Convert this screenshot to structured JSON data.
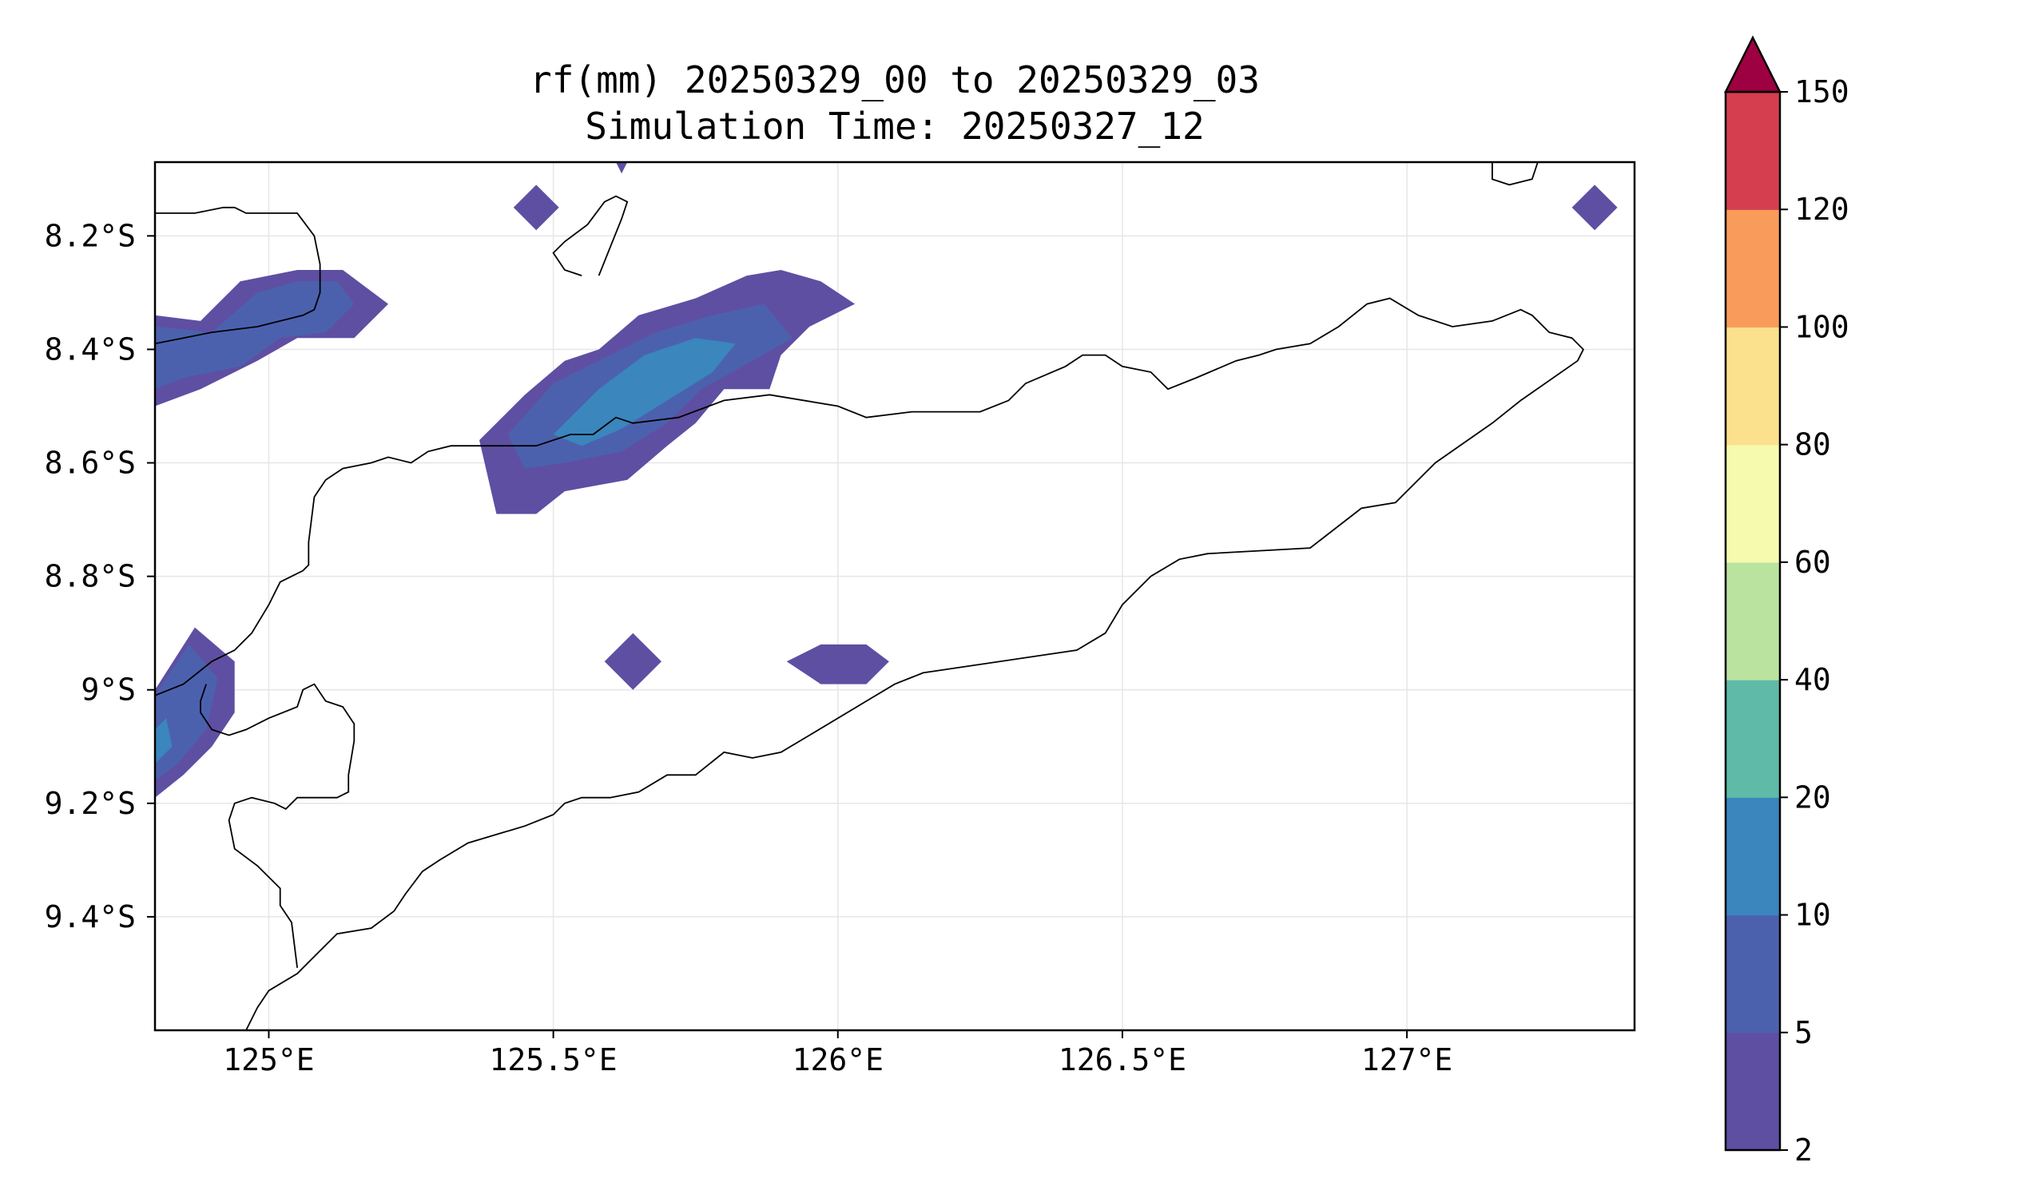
{
  "title": {
    "line1": "rf(mm) 20250329_00 to 20250329_03",
    "line2": "Simulation Time: 20250327_12"
  },
  "map": {
    "lon_range": [
      124.8,
      127.4
    ],
    "lat_range": [
      -9.6,
      -8.07
    ],
    "lon_ticks": [
      {
        "value": 125.0,
        "label": "125°E"
      },
      {
        "value": 125.5,
        "label": "125.5°E"
      },
      {
        "value": 126.0,
        "label": "126°E"
      },
      {
        "value": 126.5,
        "label": "126.5°E"
      },
      {
        "value": 127.0,
        "label": "127°E"
      }
    ],
    "lat_ticks": [
      {
        "value": -8.2,
        "label": "8.2°S"
      },
      {
        "value": -8.4,
        "label": "8.4°S"
      },
      {
        "value": -8.6,
        "label": "8.6°S"
      },
      {
        "value": -8.8,
        "label": "8.8°S"
      },
      {
        "value": -9.0,
        "label": "9°S"
      },
      {
        "value": -9.2,
        "label": "9.2°S"
      },
      {
        "value": -9.4,
        "label": "9.4°S"
      }
    ],
    "gridlines": true,
    "frame_color": "#000000",
    "grid_color": "#e6e6e6",
    "coastline_color": "#000000"
  },
  "colorbar": {
    "placement": "right",
    "extend": "max",
    "extend_color": "#9e0142",
    "levels": [
      {
        "value": 2,
        "label": "2"
      },
      {
        "value": 5,
        "label": "5"
      },
      {
        "value": 10,
        "label": "10"
      },
      {
        "value": 20,
        "label": "20"
      },
      {
        "value": 40,
        "label": "40"
      },
      {
        "value": 60,
        "label": "60"
      },
      {
        "value": 80,
        "label": "80"
      },
      {
        "value": 100,
        "label": "100"
      },
      {
        "value": 120,
        "label": "120"
      },
      {
        "value": 150,
        "label": "150"
      }
    ],
    "colors": [
      "#5e4fa2",
      "#4c61ae",
      "#3a86bd",
      "#5fbaa8",
      "#bae3a0",
      "#f5faae",
      "#fbe08d",
      "#f99c5b",
      "#d53e4f"
    ]
  },
  "chart_data": {
    "type": "heatmap",
    "variable": "rf(mm)",
    "xlim": [
      124.8,
      127.4
    ],
    "ylim": [
      -9.6,
      -8.07
    ],
    "precip_regions": [
      {
        "level": "2-5",
        "color": "#5e4fa2",
        "polygon": [
          [
            124.8,
            -8.34
          ],
          [
            124.88,
            -8.35
          ],
          [
            124.95,
            -8.28
          ],
          [
            125.05,
            -8.26
          ],
          [
            125.13,
            -8.26
          ],
          [
            125.21,
            -8.32
          ],
          [
            125.15,
            -8.38
          ],
          [
            125.05,
            -8.38
          ],
          [
            124.98,
            -8.42
          ],
          [
            124.88,
            -8.47
          ],
          [
            124.8,
            -8.5
          ]
        ]
      },
      {
        "level": "5-10",
        "color": "#4c61ae",
        "polygon": [
          [
            124.8,
            -8.36
          ],
          [
            124.9,
            -8.37
          ],
          [
            124.98,
            -8.3
          ],
          [
            125.05,
            -8.28
          ],
          [
            125.12,
            -8.28
          ],
          [
            125.15,
            -8.32
          ],
          [
            125.1,
            -8.37
          ],
          [
            125.02,
            -8.38
          ],
          [
            124.95,
            -8.43
          ],
          [
            124.85,
            -8.45
          ],
          [
            124.8,
            -8.47
          ]
        ]
      },
      {
        "level": "2-5",
        "color": "#5e4fa2",
        "polygon": [
          [
            125.37,
            -8.56
          ],
          [
            125.45,
            -8.48
          ],
          [
            125.52,
            -8.42
          ],
          [
            125.58,
            -8.4
          ],
          [
            125.65,
            -8.34
          ],
          [
            125.75,
            -8.31
          ],
          [
            125.84,
            -8.27
          ],
          [
            125.9,
            -8.26
          ],
          [
            125.97,
            -8.28
          ],
          [
            126.03,
            -8.32
          ],
          [
            125.95,
            -8.36
          ],
          [
            125.9,
            -8.41
          ],
          [
            125.88,
            -8.47
          ],
          [
            125.8,
            -8.47
          ],
          [
            125.75,
            -8.53
          ],
          [
            125.7,
            -8.57
          ],
          [
            125.63,
            -8.63
          ],
          [
            125.52,
            -8.65
          ],
          [
            125.47,
            -8.69
          ],
          [
            125.4,
            -8.69
          ]
        ]
      },
      {
        "level": "5-10",
        "color": "#4c61ae",
        "polygon": [
          [
            125.42,
            -8.55
          ],
          [
            125.5,
            -8.46
          ],
          [
            125.6,
            -8.41
          ],
          [
            125.68,
            -8.37
          ],
          [
            125.78,
            -8.34
          ],
          [
            125.87,
            -8.32
          ],
          [
            125.92,
            -8.38
          ],
          [
            125.85,
            -8.42
          ],
          [
            125.76,
            -8.47
          ],
          [
            125.7,
            -8.53
          ],
          [
            125.62,
            -8.58
          ],
          [
            125.52,
            -8.6
          ],
          [
            125.45,
            -8.61
          ]
        ]
      },
      {
        "level": "10-20",
        "color": "#3a86bd",
        "polygon": [
          [
            125.5,
            -8.55
          ],
          [
            125.58,
            -8.47
          ],
          [
            125.66,
            -8.41
          ],
          [
            125.75,
            -8.38
          ],
          [
            125.82,
            -8.39
          ],
          [
            125.78,
            -8.44
          ],
          [
            125.7,
            -8.49
          ],
          [
            125.62,
            -8.54
          ],
          [
            125.55,
            -8.57
          ]
        ]
      },
      {
        "level": "2-5",
        "color": "#5e4fa2",
        "polygon": [
          [
            124.8,
            -9.0
          ],
          [
            124.87,
            -8.89
          ],
          [
            124.94,
            -8.95
          ],
          [
            124.94,
            -9.04
          ],
          [
            124.9,
            -9.1
          ],
          [
            124.85,
            -9.15
          ],
          [
            124.8,
            -9.19
          ]
        ]
      },
      {
        "level": "5-10",
        "color": "#4c61ae",
        "polygon": [
          [
            124.8,
            -9.01
          ],
          [
            124.86,
            -8.92
          ],
          [
            124.91,
            -8.98
          ],
          [
            124.89,
            -9.07
          ],
          [
            124.84,
            -9.13
          ],
          [
            124.8,
            -9.16
          ]
        ]
      },
      {
        "level": "10-20",
        "color": "#3a86bd",
        "polygon": [
          [
            124.8,
            -9.07
          ],
          [
            124.82,
            -9.05
          ],
          [
            124.83,
            -9.1
          ],
          [
            124.8,
            -9.13
          ]
        ]
      },
      {
        "level": "2-5",
        "color": "#5e4fa2",
        "polygon": [
          [
            125.59,
            -8.95
          ],
          [
            125.64,
            -8.9
          ],
          [
            125.69,
            -8.95
          ],
          [
            125.64,
            -9.0
          ]
        ]
      },
      {
        "level": "2-5",
        "color": "#5e4fa2",
        "polygon": [
          [
            125.91,
            -8.95
          ],
          [
            125.97,
            -8.92
          ],
          [
            126.05,
            -8.92
          ],
          [
            126.09,
            -8.95
          ],
          [
            126.05,
            -8.99
          ],
          [
            125.97,
            -8.99
          ]
        ]
      },
      {
        "level": "2-5",
        "color": "#5e4fa2",
        "polygon": [
          [
            125.43,
            -8.15
          ],
          [
            125.47,
            -8.11
          ],
          [
            125.51,
            -8.15
          ],
          [
            125.47,
            -8.19
          ]
        ]
      },
      {
        "level": "2-5",
        "color": "#5e4fa2",
        "polygon": [
          [
            127.29,
            -8.15
          ],
          [
            127.33,
            -8.11
          ],
          [
            127.37,
            -8.15
          ],
          [
            127.33,
            -8.19
          ]
        ]
      },
      {
        "level": "2-5",
        "color": "#5e4fa2",
        "polygon": [
          [
            125.61,
            -8.07
          ],
          [
            125.63,
            -8.07
          ],
          [
            125.62,
            -8.09
          ]
        ]
      }
    ],
    "coastlines": [
      [
        [
          124.8,
          -9.01
        ],
        [
          124.85,
          -8.99
        ],
        [
          124.9,
          -8.95
        ],
        [
          124.94,
          -8.93
        ],
        [
          124.97,
          -8.9
        ],
        [
          125.0,
          -8.85
        ],
        [
          125.02,
          -8.81
        ],
        [
          125.06,
          -8.79
        ],
        [
          125.07,
          -8.78
        ],
        [
          125.07,
          -8.74
        ],
        [
          125.08,
          -8.66
        ],
        [
          125.1,
          -8.63
        ],
        [
          125.13,
          -8.61
        ],
        [
          125.18,
          -8.6
        ],
        [
          125.21,
          -8.59
        ],
        [
          125.25,
          -8.6
        ],
        [
          125.28,
          -8.58
        ],
        [
          125.32,
          -8.57
        ],
        [
          125.4,
          -8.57
        ],
        [
          125.47,
          -8.57
        ],
        [
          125.53,
          -8.55
        ],
        [
          125.57,
          -8.55
        ],
        [
          125.61,
          -8.52
        ],
        [
          125.64,
          -8.53
        ],
        [
          125.72,
          -8.52
        ],
        [
          125.8,
          -8.49
        ],
        [
          125.88,
          -8.48
        ],
        [
          126.0,
          -8.5
        ],
        [
          126.05,
          -8.52
        ],
        [
          126.13,
          -8.51
        ],
        [
          126.25,
          -8.51
        ],
        [
          126.3,
          -8.49
        ],
        [
          126.33,
          -8.46
        ],
        [
          126.4,
          -8.43
        ],
        [
          126.43,
          -8.41
        ],
        [
          126.47,
          -8.41
        ],
        [
          126.5,
          -8.43
        ],
        [
          126.55,
          -8.44
        ],
        [
          126.58,
          -8.47
        ],
        [
          126.63,
          -8.45
        ],
        [
          126.7,
          -8.42
        ],
        [
          126.74,
          -8.41
        ],
        [
          126.77,
          -8.4
        ],
        [
          126.83,
          -8.39
        ],
        [
          126.88,
          -8.36
        ],
        [
          126.93,
          -8.32
        ],
        [
          126.97,
          -8.31
        ],
        [
          127.02,
          -8.34
        ],
        [
          127.08,
          -8.36
        ],
        [
          127.15,
          -8.35
        ],
        [
          127.2,
          -8.33
        ],
        [
          127.22,
          -8.34
        ],
        [
          127.25,
          -8.37
        ],
        [
          127.29,
          -8.38
        ],
        [
          127.31,
          -8.4
        ],
        [
          127.3,
          -8.42
        ],
        [
          127.2,
          -8.49
        ],
        [
          127.15,
          -8.53
        ],
        [
          127.05,
          -8.6
        ],
        [
          126.98,
          -8.67
        ],
        [
          126.92,
          -8.68
        ],
        [
          126.83,
          -8.75
        ],
        [
          126.65,
          -8.76
        ],
        [
          126.6,
          -8.77
        ],
        [
          126.55,
          -8.8
        ],
        [
          126.5,
          -8.85
        ],
        [
          126.47,
          -8.9
        ],
        [
          126.42,
          -8.93
        ],
        [
          126.15,
          -8.97
        ],
        [
          126.1,
          -8.99
        ],
        [
          126.05,
          -9.02
        ],
        [
          125.95,
          -9.08
        ],
        [
          125.9,
          -9.11
        ],
        [
          125.85,
          -9.12
        ],
        [
          125.8,
          -9.11
        ],
        [
          125.75,
          -9.15
        ],
        [
          125.7,
          -9.15
        ],
        [
          125.65,
          -9.18
        ],
        [
          125.6,
          -9.19
        ],
        [
          125.55,
          -9.19
        ],
        [
          125.52,
          -9.2
        ],
        [
          125.5,
          -9.22
        ],
        [
          125.45,
          -9.24
        ],
        [
          125.35,
          -9.27
        ],
        [
          125.3,
          -9.3
        ],
        [
          125.27,
          -9.32
        ],
        [
          125.24,
          -9.36
        ],
        [
          125.22,
          -9.39
        ],
        [
          125.18,
          -9.42
        ],
        [
          125.12,
          -9.43
        ],
        [
          125.08,
          -9.47
        ],
        [
          125.05,
          -9.5
        ],
        [
          125.0,
          -9.53
        ],
        [
          124.98,
          -9.56
        ],
        [
          124.96,
          -9.6
        ]
      ],
      [
        [
          125.05,
          -9.49
        ],
        [
          125.04,
          -9.41
        ],
        [
          125.02,
          -9.38
        ],
        [
          125.02,
          -9.35
        ],
        [
          124.98,
          -9.31
        ],
        [
          124.94,
          -9.28
        ],
        [
          124.93,
          -9.23
        ],
        [
          124.94,
          -9.2
        ],
        [
          124.97,
          -9.19
        ],
        [
          125.01,
          -9.2
        ],
        [
          125.03,
          -9.21
        ],
        [
          125.05,
          -9.19
        ],
        [
          125.12,
          -9.19
        ],
        [
          125.14,
          -9.18
        ],
        [
          125.14,
          -9.15
        ],
        [
          125.15,
          -9.09
        ],
        [
          125.15,
          -9.06
        ],
        [
          125.13,
          -9.03
        ],
        [
          125.1,
          -9.02
        ],
        [
          125.08,
          -8.99
        ],
        [
          125.06,
          -9.0
        ],
        [
          125.05,
          -9.03
        ],
        [
          125.0,
          -9.05
        ],
        [
          124.96,
          -9.07
        ],
        [
          124.93,
          -9.08
        ],
        [
          124.9,
          -9.07
        ],
        [
          124.88,
          -9.04
        ],
        [
          124.88,
          -9.02
        ],
        [
          124.89,
          -8.99
        ]
      ],
      [
        [
          124.8,
          -8.16
        ],
        [
          124.87,
          -8.16
        ],
        [
          124.92,
          -8.15
        ],
        [
          124.94,
          -8.15
        ],
        [
          124.96,
          -8.16
        ],
        [
          125.0,
          -8.16
        ],
        [
          125.05,
          -8.16
        ],
        [
          125.08,
          -8.2
        ],
        [
          125.09,
          -8.25
        ],
        [
          125.09,
          -8.28
        ],
        [
          125.09,
          -8.3
        ],
        [
          125.08,
          -8.33
        ],
        [
          125.06,
          -8.34
        ],
        [
          125.02,
          -8.35
        ],
        [
          124.98,
          -8.36
        ],
        [
          124.9,
          -8.37
        ],
        [
          124.85,
          -8.38
        ],
        [
          124.8,
          -8.39
        ]
      ],
      [
        [
          125.58,
          -8.27
        ],
        [
          125.6,
          -8.22
        ],
        [
          125.62,
          -8.17
        ],
        [
          125.63,
          -8.14
        ],
        [
          125.61,
          -8.13
        ],
        [
          125.59,
          -8.14
        ],
        [
          125.56,
          -8.18
        ],
        [
          125.52,
          -8.21
        ],
        [
          125.5,
          -8.23
        ],
        [
          125.52,
          -8.26
        ],
        [
          125.55,
          -8.27
        ]
      ],
      [
        [
          127.15,
          -8.07
        ],
        [
          127.15,
          -8.1
        ],
        [
          127.18,
          -8.11
        ],
        [
          127.22,
          -8.1
        ],
        [
          127.23,
          -8.07
        ]
      ]
    ]
  }
}
